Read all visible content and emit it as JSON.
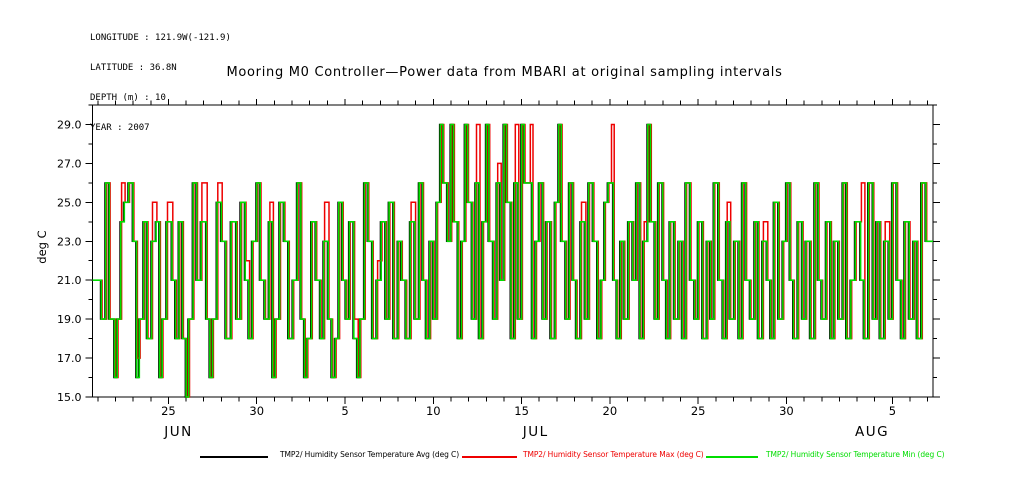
{
  "header": {
    "lines": [
      "LONGITUDE : 121.9W(-121.9)",
      "LATITUDE : 36.8N",
      "DEPTH (m) : 10",
      "YEAR : 2007"
    ]
  },
  "title": "Mooring M0 Controller—Power data from MBARI at original sampling intervals",
  "axes": {
    "y_label": "deg C",
    "y_lim": [
      15,
      30
    ],
    "y_major": [
      15,
      17,
      19,
      21,
      23,
      25,
      27,
      29
    ],
    "y_major_labels": [
      "15.0",
      "17.0",
      "19.0",
      "21.0",
      "23.0",
      "25.0",
      "27.0",
      "29.0"
    ],
    "y_minor": [
      16,
      18,
      20,
      22,
      24,
      26,
      28,
      30
    ],
    "x_lim": [
      0,
      47.6
    ],
    "x_day_tick_start": 0.3,
    "x_day_tick_count": 48,
    "x_major": [
      {
        "t": 4.3,
        "label": "25"
      },
      {
        "t": 9.3,
        "label": "30"
      },
      {
        "t": 14.3,
        "label": "5"
      },
      {
        "t": 19.3,
        "label": "10"
      },
      {
        "t": 24.3,
        "label": "15"
      },
      {
        "t": 29.3,
        "label": "20"
      },
      {
        "t": 34.3,
        "label": "25"
      },
      {
        "t": 39.3,
        "label": "30"
      },
      {
        "t": 45.3,
        "label": "5"
      }
    ],
    "months": [
      {
        "t": 4.87,
        "label": "JUN"
      },
      {
        "t": 25.1,
        "label": "JUL"
      },
      {
        "t": 44.15,
        "label": "AUG"
      }
    ]
  },
  "chart_data": {
    "type": "line",
    "line_style": "step",
    "title": "Mooring M0 Controller—Power data from MBARI at original sampling intervals",
    "xlabel": "",
    "ylabel": "deg C",
    "ylim": [
      15,
      30
    ],
    "x_range": [
      0,
      47.6
    ],
    "x_description": "days across window Jun 21 - Aug 7, 2007 (ticks labeled by day of month)",
    "grid": false,
    "legend_position": "bottom",
    "series": [
      {
        "name": "TMP2/ Humidity Sensor Temperature Avg (deg C)",
        "color": "#000000"
      },
      {
        "name": "TMP2/ Humidity Sensor Temperature Max (deg C)",
        "color": "#ee0000"
      },
      {
        "name": "TMP2/ Humidity Sensor Temperature Min (deg C)",
        "color": "#00dd00"
      }
    ],
    "sample_format": [
      "t_days",
      "min_degC",
      "max_degC_if_different"
    ],
    "samples": [
      [
        0,
        21
      ],
      [
        0.5,
        19
      ],
      [
        0.75,
        26
      ],
      [
        0.95,
        19
      ],
      [
        1.25,
        16
      ],
      [
        1.4,
        19
      ],
      [
        1.6,
        24,
        26
      ],
      [
        1.8,
        25
      ],
      [
        2.05,
        26
      ],
      [
        2.3,
        23
      ],
      [
        2.5,
        16,
        17
      ],
      [
        2.65,
        19
      ],
      [
        2.9,
        24
      ],
      [
        3.1,
        18
      ],
      [
        3.35,
        23,
        25
      ],
      [
        3.6,
        24
      ],
      [
        3.8,
        16
      ],
      [
        3.95,
        19
      ],
      [
        4.2,
        24,
        25
      ],
      [
        4.5,
        21
      ],
      [
        4.7,
        18
      ],
      [
        4.9,
        24
      ],
      [
        5.1,
        18
      ],
      [
        5.3,
        15
      ],
      [
        5.45,
        19
      ],
      [
        5.7,
        26
      ],
      [
        5.9,
        21
      ],
      [
        6.15,
        24,
        26
      ],
      [
        6.45,
        19
      ],
      [
        6.65,
        16
      ],
      [
        6.8,
        19
      ],
      [
        7.05,
        25,
        26
      ],
      [
        7.3,
        23
      ],
      [
        7.55,
        18
      ],
      [
        7.85,
        24
      ],
      [
        8.15,
        19
      ],
      [
        8.4,
        25
      ],
      [
        8.65,
        21,
        22
      ],
      [
        8.85,
        18
      ],
      [
        9.05,
        23
      ],
      [
        9.3,
        26
      ],
      [
        9.5,
        21
      ],
      [
        9.75,
        19
      ],
      [
        10,
        24,
        25
      ],
      [
        10.2,
        16
      ],
      [
        10.35,
        19
      ],
      [
        10.6,
        25
      ],
      [
        10.85,
        23
      ],
      [
        11.1,
        18
      ],
      [
        11.35,
        21
      ],
      [
        11.6,
        26
      ],
      [
        11.8,
        19
      ],
      [
        12,
        16
      ],
      [
        12.15,
        18
      ],
      [
        12.4,
        24
      ],
      [
        12.65,
        21
      ],
      [
        12.9,
        18
      ],
      [
        13.1,
        23,
        25
      ],
      [
        13.35,
        19
      ],
      [
        13.55,
        16
      ],
      [
        13.75,
        18
      ],
      [
        13.95,
        25
      ],
      [
        14.15,
        21
      ],
      [
        14.35,
        19
      ],
      [
        14.55,
        24
      ],
      [
        14.8,
        18,
        19
      ],
      [
        15,
        16
      ],
      [
        15.15,
        19
      ],
      [
        15.4,
        26
      ],
      [
        15.6,
        23
      ],
      [
        15.85,
        18
      ],
      [
        16.1,
        21,
        22
      ],
      [
        16.35,
        24
      ],
      [
        16.6,
        19
      ],
      [
        16.8,
        25
      ],
      [
        17.05,
        18
      ],
      [
        17.3,
        23
      ],
      [
        17.5,
        21
      ],
      [
        17.75,
        18
      ],
      [
        18,
        24,
        25
      ],
      [
        18.25,
        19
      ],
      [
        18.5,
        26
      ],
      [
        18.7,
        21
      ],
      [
        18.9,
        18
      ],
      [
        19.1,
        23
      ],
      [
        19.3,
        19
      ],
      [
        19.5,
        25
      ],
      [
        19.7,
        29
      ],
      [
        19.85,
        26
      ],
      [
        20.1,
        23
      ],
      [
        20.3,
        29
      ],
      [
        20.45,
        24
      ],
      [
        20.7,
        18
      ],
      [
        20.9,
        23
      ],
      [
        21.1,
        29
      ],
      [
        21.25,
        25
      ],
      [
        21.5,
        19
      ],
      [
        21.7,
        26,
        29
      ],
      [
        21.9,
        18
      ],
      [
        22.1,
        24
      ],
      [
        22.3,
        29
      ],
      [
        22.45,
        23
      ],
      [
        22.7,
        19
      ],
      [
        22.9,
        26,
        27
      ],
      [
        23.1,
        21
      ],
      [
        23.3,
        29
      ],
      [
        23.45,
        25
      ],
      [
        23.7,
        18
      ],
      [
        23.9,
        26,
        29
      ],
      [
        24.1,
        19
      ],
      [
        24.3,
        29
      ],
      [
        24.45,
        26
      ],
      [
        24.75,
        26,
        29
      ],
      [
        24.9,
        18
      ],
      [
        25.1,
        23
      ],
      [
        25.3,
        26
      ],
      [
        25.5,
        19
      ],
      [
        25.7,
        24
      ],
      [
        25.95,
        18
      ],
      [
        26.2,
        25
      ],
      [
        26.4,
        29
      ],
      [
        26.55,
        23
      ],
      [
        26.8,
        19
      ],
      [
        27,
        26
      ],
      [
        27.2,
        21
      ],
      [
        27.4,
        18
      ],
      [
        27.65,
        24,
        25
      ],
      [
        27.9,
        19
      ],
      [
        28.1,
        26
      ],
      [
        28.35,
        23
      ],
      [
        28.6,
        18
      ],
      [
        28.8,
        21
      ],
      [
        29,
        25
      ],
      [
        29.2,
        26
      ],
      [
        29.35,
        26,
        29
      ],
      [
        29.5,
        21
      ],
      [
        29.7,
        18
      ],
      [
        29.9,
        23
      ],
      [
        30.1,
        19
      ],
      [
        30.35,
        24
      ],
      [
        30.6,
        21
      ],
      [
        30.8,
        26
      ],
      [
        31,
        18
      ],
      [
        31.2,
        23,
        24
      ],
      [
        31.45,
        29
      ],
      [
        31.6,
        24
      ],
      [
        31.85,
        19
      ],
      [
        32.05,
        26
      ],
      [
        32.3,
        21
      ],
      [
        32.5,
        18
      ],
      [
        32.7,
        24
      ],
      [
        32.95,
        19
      ],
      [
        33.2,
        23
      ],
      [
        33.4,
        18
      ],
      [
        33.6,
        26
      ],
      [
        33.85,
        21
      ],
      [
        34.1,
        19
      ],
      [
        34.3,
        24
      ],
      [
        34.55,
        18
      ],
      [
        34.8,
        23
      ],
      [
        35,
        19
      ],
      [
        35.2,
        26
      ],
      [
        35.45,
        21
      ],
      [
        35.7,
        18
      ],
      [
        35.9,
        24,
        25
      ],
      [
        36.1,
        19
      ],
      [
        36.35,
        23
      ],
      [
        36.6,
        18
      ],
      [
        36.8,
        26
      ],
      [
        37,
        21
      ],
      [
        37.25,
        19
      ],
      [
        37.5,
        24
      ],
      [
        37.7,
        18
      ],
      [
        37.95,
        23,
        24
      ],
      [
        38.2,
        21
      ],
      [
        38.4,
        18
      ],
      [
        38.6,
        25
      ],
      [
        38.85,
        19
      ],
      [
        39.1,
        23
      ],
      [
        39.3,
        26
      ],
      [
        39.5,
        21
      ],
      [
        39.7,
        18
      ],
      [
        39.95,
        24
      ],
      [
        40.2,
        19
      ],
      [
        40.4,
        23
      ],
      [
        40.65,
        18
      ],
      [
        40.9,
        26
      ],
      [
        41.1,
        21
      ],
      [
        41.3,
        19
      ],
      [
        41.55,
        24
      ],
      [
        41.8,
        18
      ],
      [
        42,
        23
      ],
      [
        42.25,
        19
      ],
      [
        42.5,
        26
      ],
      [
        42.7,
        18
      ],
      [
        42.95,
        21
      ],
      [
        43.2,
        24
      ],
      [
        43.5,
        21,
        26
      ],
      [
        43.7,
        18
      ],
      [
        43.95,
        26
      ],
      [
        44.2,
        19
      ],
      [
        44.4,
        24
      ],
      [
        44.6,
        18
      ],
      [
        44.85,
        23,
        24
      ],
      [
        45.1,
        19
      ],
      [
        45.3,
        26
      ],
      [
        45.55,
        21
      ],
      [
        45.8,
        18
      ],
      [
        46,
        24
      ],
      [
        46.25,
        19
      ],
      [
        46.5,
        23
      ],
      [
        46.7,
        18
      ],
      [
        46.95,
        26
      ],
      [
        47.2,
        23
      ],
      [
        47.55,
        23
      ]
    ]
  },
  "legend": {
    "items": [
      {
        "label": "TMP2/ Humidity Sensor Temperature Avg (deg C)",
        "color": "#000000"
      },
      {
        "label": "TMP2/ Humidity Sensor Temperature Max (deg C)",
        "color": "#ee0000"
      },
      {
        "label": "TMP2/ Humidity Sensor Temperature Min (deg C)",
        "color": "#00dd00"
      }
    ]
  }
}
